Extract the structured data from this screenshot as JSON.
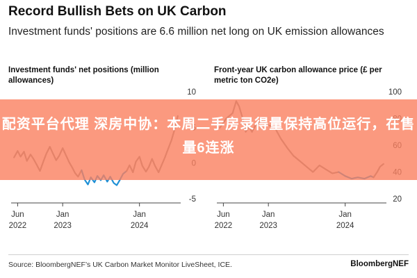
{
  "title": "Record Bullish Bets on UK Carbon",
  "subtitle": "Investment funds' positions are 6.6 million net long on UK emission allowances",
  "source": "Source: BloombergNEF’s UK Carbon Market Monitor LiveSheet, ICE.",
  "brand": "BloombergNEF",
  "overlay_text": "配资平台代理 深房中协：本周二手房录得量保持高位运行，在售量6连涨",
  "colors": {
    "gray": "#8a8a8a",
    "blue": "#1e90d6",
    "overlay": "#fa805f"
  },
  "chart_data": [
    {
      "type": "line",
      "title": "Investment funds' net positions (million allowances)",
      "ylim": [
        -5,
        10
      ],
      "y_ticks": [
        "10",
        "5",
        "0",
        "-5"
      ],
      "x_ticks": [
        {
          "line1": "Jun",
          "line2": "2022",
          "date": "2022-06-01"
        },
        {
          "line1": "Jan",
          "line2": "2023",
          "date": "2023-01-01"
        },
        {
          "line1": "Jan",
          "line2": "2024",
          "date": "2024-01-01"
        }
      ],
      "x_range": [
        "2022-05-01",
        "2024-07-15"
      ],
      "y_axis_side": "right",
      "grid": false,
      "series": [
        {
          "color": "gray",
          "points": [
            [
              "2022-05-15",
              0.8
            ],
            [
              "2022-06-01",
              1.7
            ],
            [
              "2022-06-15",
              0.9
            ],
            [
              "2022-07-01",
              1.6
            ],
            [
              "2022-07-15",
              0.3
            ],
            [
              "2022-08-01",
              1.2
            ],
            [
              "2022-08-15",
              0.6
            ],
            [
              "2022-09-01",
              -0.3
            ],
            [
              "2022-09-15",
              -1.1
            ],
            [
              "2022-10-01",
              0.2
            ],
            [
              "2022-10-15",
              1.3
            ],
            [
              "2022-11-01",
              2.3
            ],
            [
              "2022-11-15",
              1.4
            ],
            [
              "2022-12-01",
              0.4
            ],
            [
              "2022-12-15",
              1.0
            ],
            [
              "2023-01-01",
              2.1
            ],
            [
              "2023-01-15",
              1.2
            ],
            [
              "2023-02-01",
              0.1
            ],
            [
              "2023-02-15",
              -0.6
            ],
            [
              "2023-03-01",
              -1.4
            ],
            [
              "2023-03-15",
              -1.9
            ],
            [
              "2023-04-01",
              -1.0
            ]
          ]
        },
        {
          "color": "blue",
          "points": [
            [
              "2023-04-01",
              -1.0
            ],
            [
              "2023-04-15",
              -2.3
            ],
            [
              "2023-05-01",
              -3.0
            ],
            [
              "2023-05-15",
              -2.0
            ],
            [
              "2023-06-01",
              -2.7
            ],
            [
              "2023-06-15",
              -1.8
            ],
            [
              "2023-07-01",
              -2.4
            ],
            [
              "2023-07-15",
              -1.7
            ],
            [
              "2023-08-01",
              -2.6
            ],
            [
              "2023-08-15",
              -1.9
            ],
            [
              "2023-09-01",
              -2.8
            ],
            [
              "2023-09-15",
              -3.1
            ],
            [
              "2023-10-01",
              -2.3
            ],
            [
              "2023-10-15",
              -1.5
            ],
            [
              "2023-11-01",
              -1.1
            ]
          ]
        },
        {
          "color": "gray",
          "points": [
            [
              "2023-11-01",
              -1.1
            ],
            [
              "2023-11-15",
              -0.3
            ],
            [
              "2023-12-01",
              -1.3
            ],
            [
              "2023-12-15",
              0.2
            ],
            [
              "2024-01-01",
              0.9
            ],
            [
              "2024-01-15",
              -0.4
            ],
            [
              "2024-02-01",
              -1.2
            ],
            [
              "2024-02-15",
              -0.5
            ],
            [
              "2024-03-01",
              0.6
            ],
            [
              "2024-03-15",
              -0.4
            ],
            [
              "2024-04-01",
              -1.3
            ],
            [
              "2024-04-15",
              -0.3
            ],
            [
              "2024-05-01",
              0.8
            ],
            [
              "2024-05-15",
              1.9
            ],
            [
              "2024-06-01",
              3.2
            ],
            [
              "2024-06-15",
              4.6
            ],
            [
              "2024-07-01",
              6.6
            ]
          ]
        }
      ]
    },
    {
      "type": "line",
      "title": "Front-year UK carbon allowance price (£ per metric ton CO2e)",
      "ylim": [
        20,
        100
      ],
      "y_ticks": [
        "100",
        "80",
        "60",
        "40",
        "20"
      ],
      "x_ticks": [
        {
          "line1": "Jun",
          "line2": "2022",
          "date": "2022-06-01"
        },
        {
          "line1": "Jan",
          "line2": "2023",
          "date": "2023-01-01"
        },
        {
          "line1": "Jan",
          "line2": "2024",
          "date": "2024-01-01"
        }
      ],
      "x_range": [
        "2022-05-01",
        "2024-07-15"
      ],
      "y_axis_side": "right",
      "grid": false,
      "series": [
        {
          "color": "gray",
          "points": [
            [
              "2022-05-15",
              73
            ],
            [
              "2022-06-15",
              80
            ],
            [
              "2022-07-15",
              84
            ],
            [
              "2022-08-01",
              93
            ],
            [
              "2022-08-15",
              89
            ],
            [
              "2022-09-01",
              80
            ],
            [
              "2022-09-15",
              70
            ],
            [
              "2022-10-01",
              74
            ],
            [
              "2022-10-15",
              70
            ],
            [
              "2022-11-01",
              75
            ],
            [
              "2022-12-01",
              78
            ],
            [
              "2023-01-01",
              75
            ],
            [
              "2023-02-01",
              73
            ],
            [
              "2023-03-01",
              65
            ],
            [
              "2023-04-01",
              58
            ],
            [
              "2023-05-01",
              52
            ],
            [
              "2023-06-01",
              48
            ],
            [
              "2023-07-01",
              44
            ],
            [
              "2023-08-01",
              40
            ],
            [
              "2023-09-01",
              45
            ],
            [
              "2023-10-01",
              42
            ],
            [
              "2023-11-01",
              39
            ],
            [
              "2023-12-01",
              40
            ]
          ]
        },
        {
          "color": "blue",
          "points": [
            [
              "2023-12-01",
              40
            ],
            [
              "2024-01-01",
              37
            ],
            [
              "2024-02-01",
              35
            ],
            [
              "2024-03-01",
              36
            ],
            [
              "2024-04-01",
              35
            ],
            [
              "2024-05-01",
              37
            ],
            [
              "2024-05-15",
              36
            ]
          ]
        },
        {
          "color": "gray",
          "points": [
            [
              "2024-05-15",
              36
            ],
            [
              "2024-06-01",
              40
            ],
            [
              "2024-06-15",
              44
            ],
            [
              "2024-07-01",
              46
            ]
          ]
        }
      ]
    }
  ]
}
